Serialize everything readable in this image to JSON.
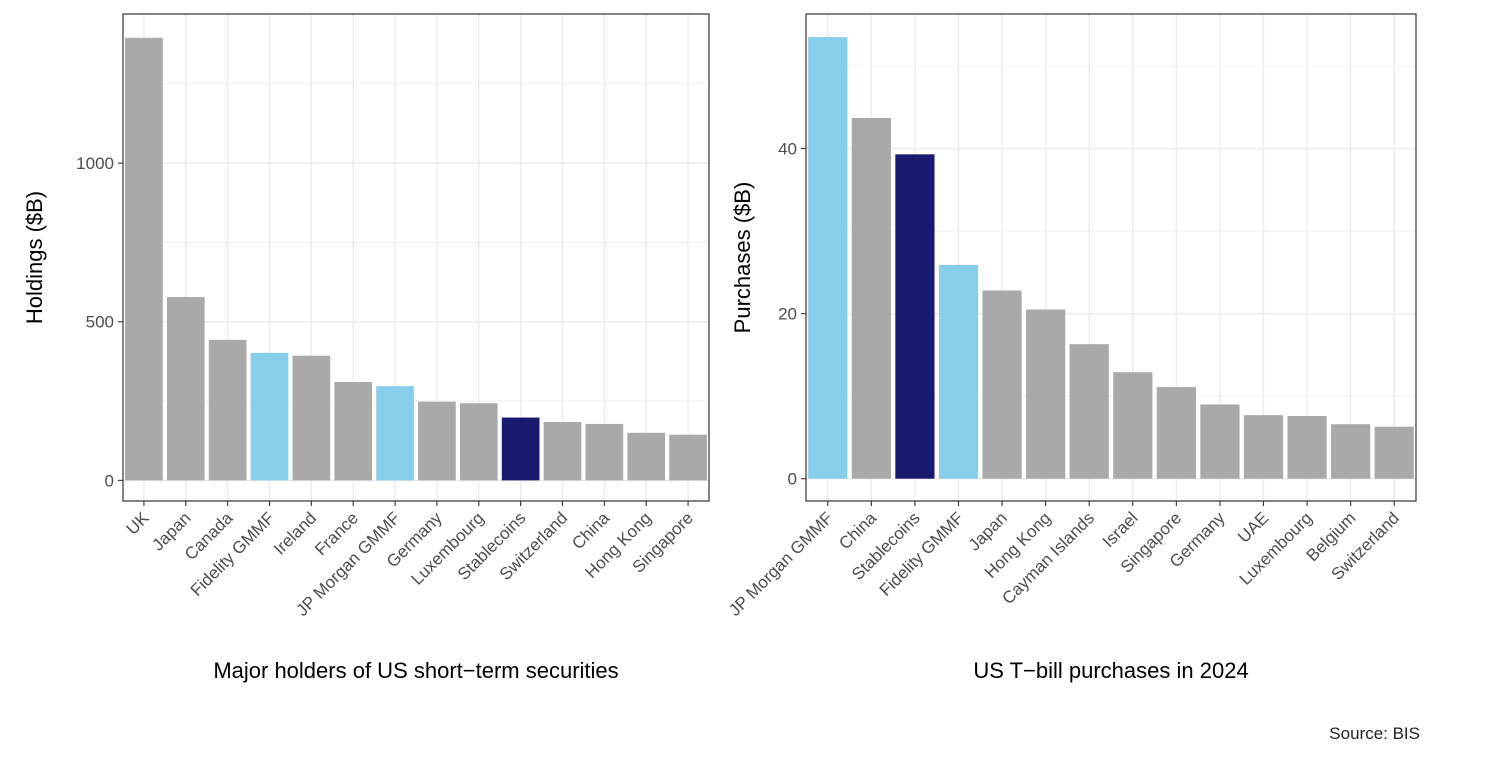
{
  "chart_data": [
    {
      "type": "bar",
      "xlabel": "Major holders of US short−term securities",
      "ylabel": "Holdings ($B)",
      "categories": [
        "UK",
        "Japan",
        "Canada",
        "Fidelity GMMF",
        "Ireland",
        "France",
        "JP Morgan GMMF",
        "Germany",
        "Luxembourg",
        "Stablecoins",
        "Switzerland",
        "China",
        "Hong Kong",
        "Singapore"
      ],
      "values": [
        1395,
        578,
        443,
        402,
        393,
        310,
        297,
        248,
        243,
        198,
        184,
        178,
        150,
        144
      ],
      "bar_colors": [
        "#a9a9a9",
        "#a9a9a9",
        "#a9a9a9",
        "#87ceeb",
        "#a9a9a9",
        "#a9a9a9",
        "#87ceeb",
        "#a9a9a9",
        "#a9a9a9",
        "#191970",
        "#a9a9a9",
        "#a9a9a9",
        "#a9a9a9",
        "#a9a9a9"
      ],
      "ylim": [
        -65,
        1470
      ],
      "yticks": [
        0,
        500,
        1000
      ],
      "grid": true
    },
    {
      "type": "bar",
      "xlabel": "US T−bill purchases in 2024",
      "ylabel": "Purchases ($B)",
      "categories": [
        "JP Morgan GMMF",
        "China",
        "Stablecoins",
        "Fidelity GMMF",
        "Japan",
        "Hong Kong",
        "Cayman Islands",
        "Israel",
        "Singapore",
        "Germany",
        "UAE",
        "Luxembourg",
        "Belgium",
        "Switzerland"
      ],
      "values": [
        53.5,
        43.7,
        39.3,
        25.9,
        22.8,
        20.5,
        16.3,
        12.9,
        11.1,
        9.0,
        7.7,
        7.6,
        6.6,
        6.3
      ],
      "bar_colors": [
        "#87ceeb",
        "#a9a9a9",
        "#191970",
        "#87ceeb",
        "#a9a9a9",
        "#a9a9a9",
        "#a9a9a9",
        "#a9a9a9",
        "#a9a9a9",
        "#a9a9a9",
        "#a9a9a9",
        "#a9a9a9",
        "#a9a9a9",
        "#a9a9a9"
      ],
      "ylim": [
        -2.7,
        56.3
      ],
      "yticks": [
        0,
        20,
        40
      ],
      "grid": true
    }
  ],
  "source": "Source: BIS",
  "colors": {
    "default_bar": "#a9a9a9",
    "gmmf_bar": "#87ceeb",
    "stablecoins_bar": "#191970",
    "grid": "#ebebeb",
    "panel_border": "#333333"
  }
}
